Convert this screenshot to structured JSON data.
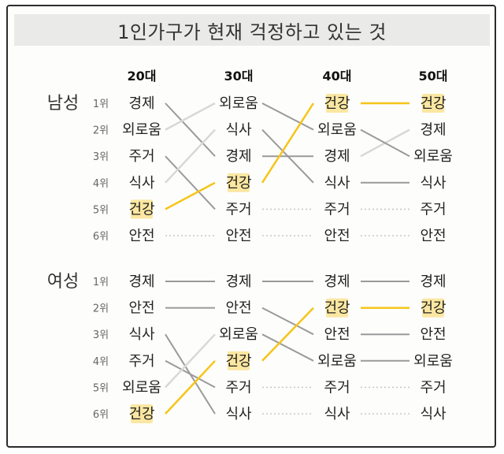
{
  "title": "1인가구가 현재 걱정하고 있는 것",
  "colors": {
    "highlight": "#f5c518",
    "highlight_bg": "#fbe7a1",
    "line_dark": "#9a9a9a",
    "line_light": "#d8d8d8"
  },
  "chart_data": {
    "type": "bump",
    "highlight_item": "건강",
    "age_groups": [
      "20대",
      "30대",
      "40대",
      "50대"
    ],
    "rank_labels": [
      "1위",
      "2위",
      "3위",
      "4위",
      "5위",
      "6위"
    ],
    "panels": [
      {
        "group": "남성",
        "rankings": [
          [
            "경제",
            "외로움",
            "주거",
            "식사",
            "건강",
            "안전"
          ],
          [
            "외로움",
            "식사",
            "경제",
            "건강",
            "주거",
            "안전"
          ],
          [
            "건강",
            "외로움",
            "경제",
            "식사",
            "주거",
            "안전"
          ],
          [
            "건강",
            "경제",
            "외로움",
            "식사",
            "주거",
            "안전"
          ]
        ]
      },
      {
        "group": "여성",
        "rankings": [
          [
            "경제",
            "안전",
            "식사",
            "주거",
            "외로움",
            "건강"
          ],
          [
            "경제",
            "안전",
            "외로움",
            "건강",
            "주거",
            "식사"
          ],
          [
            "경제",
            "건강",
            "안전",
            "외로움",
            "주거",
            "식사"
          ],
          [
            "경제",
            "건강",
            "안전",
            "외로움",
            "주거",
            "식사"
          ]
        ]
      }
    ]
  }
}
